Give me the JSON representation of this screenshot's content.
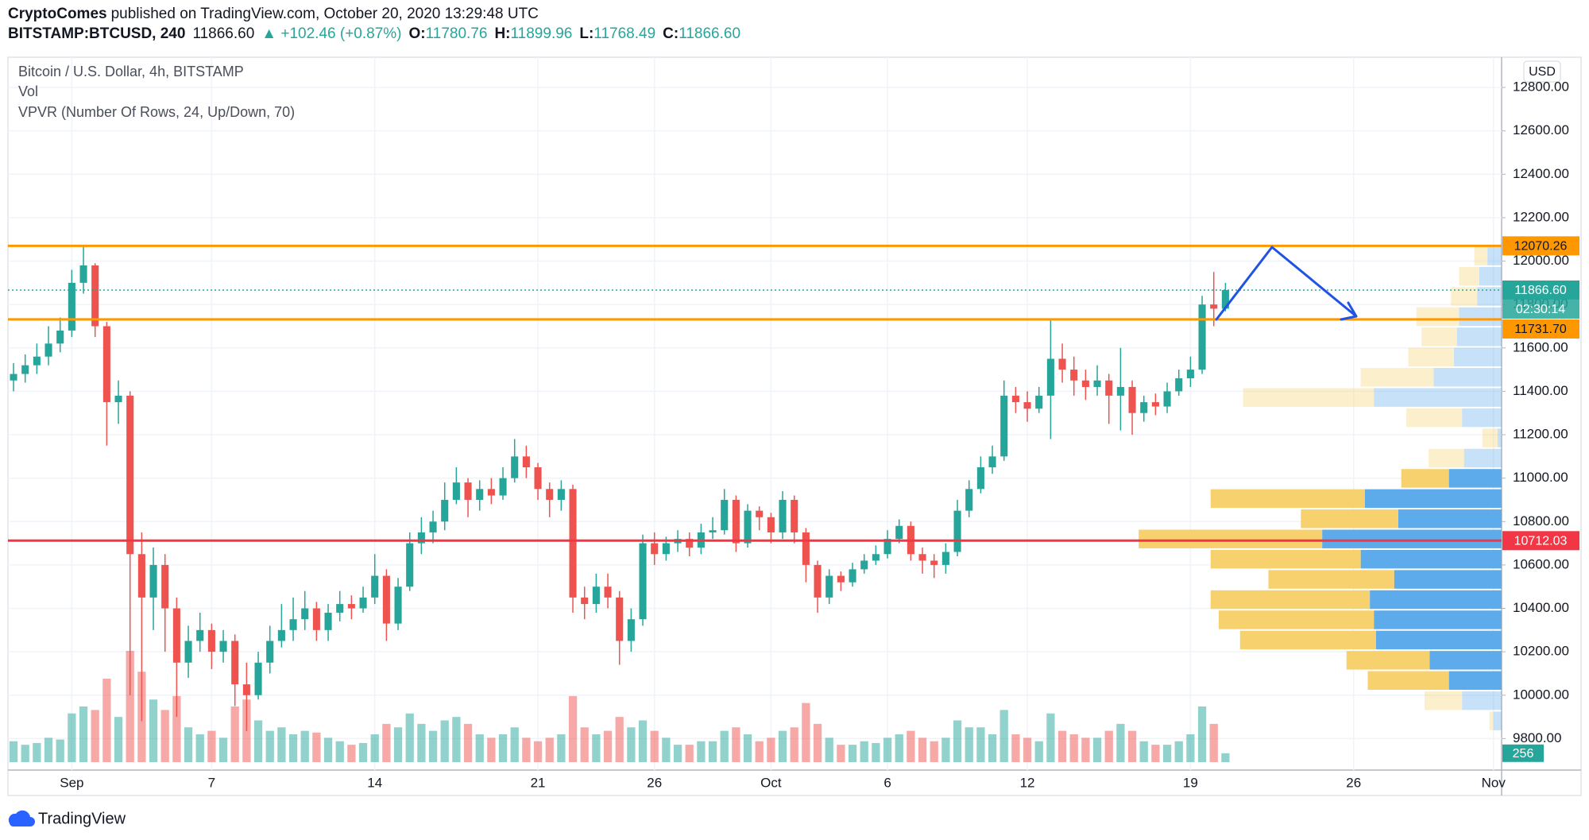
{
  "header": {
    "author": "CryptoComes",
    "published": "published on TradingView.com, October 20, 2020 13:29:48 UTC",
    "symbol": "BITSTAMP:BTCUSD, 240",
    "last": "11866.60",
    "change": "▲ +102.46 (+0.87%)",
    "ohlc": [
      {
        "key": "O:",
        "value": "11780.76"
      },
      {
        "key": "H:",
        "value": "11899.96"
      },
      {
        "key": "L:",
        "value": "11768.49"
      },
      {
        "key": "C:",
        "value": "11866.60"
      }
    ]
  },
  "footer": {
    "brand": "TradingView"
  },
  "chart_data": {
    "type": "candlestick",
    "title": "Bitcoin / U.S. Dollar, 4h, BITSTAMP",
    "indicators": [
      "Vol",
      "VPVR (Number Of Rows, 24, Up/Down, 70)"
    ],
    "currency": "USD",
    "grid": true,
    "up_color": "#26a69a",
    "down_color": "#ef5350",
    "xlim": [
      -2.74,
      61.35
    ],
    "ylim": [
      9655,
      12921
    ],
    "xticks": [
      {
        "value": 0,
        "label": "Sep"
      },
      {
        "value": 6,
        "label": "7"
      },
      {
        "value": 13,
        "label": "14"
      },
      {
        "value": 20,
        "label": "21"
      },
      {
        "value": 25,
        "label": "26"
      },
      {
        "value": 30,
        "label": "Oct"
      },
      {
        "value": 35,
        "label": "6"
      },
      {
        "value": 41,
        "label": "12"
      },
      {
        "value": 48,
        "label": "19"
      },
      {
        "value": 55,
        "label": "26"
      },
      {
        "value": 61,
        "label": "Nov"
      }
    ],
    "yticks": [
      {
        "value": 9800,
        "label": "9800.00"
      },
      {
        "value": 10000,
        "label": "10000.00"
      },
      {
        "value": 10200,
        "label": "10200.00"
      },
      {
        "value": 10400,
        "label": "10400.00"
      },
      {
        "value": 10600,
        "label": "10600.00"
      },
      {
        "value": 10800,
        "label": "10800.00"
      },
      {
        "value": 11000,
        "label": "11000.00"
      },
      {
        "value": 11200,
        "label": "11200.00"
      },
      {
        "value": 11400,
        "label": "11400.00"
      },
      {
        "value": 11600,
        "label": "11600.00"
      },
      {
        "value": 11800,
        "label": "11800.00"
      },
      {
        "value": 12000,
        "label": "12000.00"
      },
      {
        "value": 12200,
        "label": "12200.00"
      },
      {
        "value": 12400,
        "label": "12400.00"
      },
      {
        "value": 12600,
        "label": "12600.00"
      },
      {
        "value": 12800,
        "label": "12800.00"
      }
    ],
    "x": [
      -2.5,
      -2,
      -1.5,
      -1,
      -0.5,
      0,
      0.5,
      1,
      1.5,
      2,
      2.5,
      3,
      3.5,
      4,
      4.5,
      5,
      5.5,
      6,
      6.5,
      7,
      7.5,
      8,
      8.5,
      9,
      9.5,
      10,
      10.5,
      11,
      11.5,
      12,
      12.5,
      13,
      13.5,
      14,
      14.5,
      15,
      15.5,
      16,
      16.5,
      17,
      17.5,
      18,
      18.5,
      19,
      19.5,
      20,
      20.5,
      21,
      21.5,
      22,
      22.5,
      23,
      23.5,
      24,
      24.5,
      25,
      25.5,
      26,
      26.5,
      27,
      27.5,
      28,
      28.5,
      29,
      29.5,
      30,
      30.5,
      31,
      31.5,
      32,
      32.5,
      33,
      33.5,
      34,
      34.5,
      35,
      35.5,
      36,
      36.5,
      37,
      37.5,
      38,
      38.5,
      39,
      39.5,
      40,
      40.5,
      41,
      41.5,
      42,
      42.5,
      43,
      43.5,
      44,
      44.5,
      45,
      45.5,
      46,
      46.5,
      47,
      47.5,
      48,
      48.5,
      49,
      49.5
    ],
    "open": [
      11450,
      11480,
      11520,
      11560,
      11620,
      11680,
      11900,
      11980,
      11700,
      11350,
      11380,
      10650,
      10450,
      10600,
      10400,
      10150,
      10250,
      10300,
      10200,
      10250,
      10050,
      10000,
      10150,
      10250,
      10300,
      10350,
      10400,
      10300,
      10380,
      10420,
      10400,
      10450,
      10550,
      10330,
      10500,
      10700,
      10750,
      10800,
      10900,
      10980,
      10900,
      10950,
      10920,
      11000,
      11100,
      11050,
      10950,
      10900,
      10950,
      10450,
      10420,
      10500,
      10450,
      10250,
      10350,
      10700,
      10650,
      10700,
      10720,
      10680,
      10750,
      10760,
      10900,
      10700,
      10850,
      10820,
      10750,
      10900,
      10750,
      10600,
      10450,
      10550,
      10520,
      10580,
      10620,
      10650,
      10720,
      10780,
      10650,
      10620,
      10600,
      10660,
      10850,
      10950,
      11050,
      11100,
      11380,
      11350,
      11320,
      11380,
      11550,
      11500,
      11450,
      11420,
      11450,
      11380,
      11420,
      11300,
      11350,
      11330,
      11400,
      11460,
      11500,
      11800,
      11780.76
    ],
    "high": [
      11530,
      11570,
      11620,
      11700,
      11740,
      11960,
      12070,
      11990,
      11720,
      11450,
      11400,
      10750,
      10680,
      10650,
      10450,
      10320,
      10380,
      10330,
      10300,
      10280,
      10150,
      10200,
      10320,
      10420,
      10450,
      10480,
      10430,
      10420,
      10480,
      10460,
      10500,
      10650,
      10580,
      10540,
      10750,
      10820,
      10850,
      10980,
      11050,
      11000,
      10990,
      11000,
      11050,
      11180,
      11150,
      11070,
      10980,
      10990,
      10970,
      10500,
      10560,
      10560,
      10480,
      10400,
      10740,
      10750,
      10730,
      10760,
      10750,
      10790,
      10820,
      10950,
      10920,
      10880,
      10870,
      10840,
      10940,
      10920,
      10770,
      10620,
      10580,
      10570,
      10610,
      10650,
      10690,
      10760,
      10810,
      10800,
      10680,
      10650,
      10700,
      10900,
      10990,
      11100,
      11150,
      11450,
      11420,
      11400,
      11420,
      11730,
      11620,
      11560,
      11500,
      11520,
      11480,
      11600,
      11450,
      11380,
      11390,
      11440,
      11500,
      11560,
      11840,
      11950,
      11899.96
    ],
    "low": [
      11400,
      11440,
      11480,
      11520,
      11580,
      11650,
      11850,
      11650,
      11150,
      11250,
      10000,
      9880,
      10300,
      10200,
      9900,
      10080,
      10200,
      10120,
      10150,
      9950,
      9835,
      9980,
      10100,
      10220,
      10250,
      10300,
      10250,
      10250,
      10340,
      10350,
      10380,
      10420,
      10250,
      10300,
      10480,
      10650,
      10700,
      10760,
      10880,
      10820,
      10850,
      10880,
      10900,
      10980,
      11000,
      10900,
      10820,
      10850,
      10380,
      10350,
      10380,
      10400,
      10140,
      10200,
      10320,
      10600,
      10620,
      10660,
      10640,
      10650,
      10720,
      10740,
      10660,
      10680,
      10760,
      10700,
      10720,
      10700,
      10520,
      10380,
      10420,
      10480,
      10500,
      10560,
      10600,
      10630,
      10700,
      10620,
      10560,
      10540,
      10560,
      10640,
      10820,
      10930,
      11020,
      11080,
      11300,
      11260,
      11300,
      11180,
      11440,
      11380,
      11360,
      11380,
      11250,
      11220,
      11200,
      11260,
      11290,
      11300,
      11380,
      11420,
      11480,
      11700,
      11768.49
    ],
    "close": [
      11480,
      11520,
      11560,
      11620,
      11680,
      11900,
      11980,
      11700,
      11350,
      11380,
      10650,
      10450,
      10600,
      10400,
      10150,
      10250,
      10300,
      10200,
      10250,
      10050,
      10000,
      10150,
      10250,
      10300,
      10350,
      10400,
      10300,
      10380,
      10420,
      10400,
      10450,
      10550,
      10330,
      10500,
      10700,
      10750,
      10800,
      10900,
      10980,
      10900,
      10950,
      10920,
      11000,
      11100,
      11050,
      10950,
      10900,
      10950,
      10450,
      10420,
      10500,
      10450,
      10250,
      10350,
      10700,
      10650,
      10700,
      10720,
      10680,
      10750,
      10760,
      10900,
      10700,
      10850,
      10820,
      10750,
      10900,
      10750,
      10600,
      10450,
      10550,
      10520,
      10580,
      10620,
      10650,
      10720,
      10780,
      10650,
      10620,
      10600,
      10660,
      10850,
      10950,
      11050,
      11100,
      11380,
      11350,
      11320,
      11380,
      11550,
      11500,
      11450,
      11420,
      11450,
      11380,
      11420,
      11300,
      11350,
      11330,
      11400,
      11460,
      11500,
      11800,
      11780.76,
      11866.6
    ],
    "volume": [
      600,
      500,
      550,
      700,
      650,
      1400,
      1600,
      1500,
      2400,
      1300,
      3200,
      2600,
      1800,
      1500,
      1900,
      1000,
      800,
      900,
      700,
      1600,
      1800,
      1200,
      900,
      1000,
      800,
      900,
      850,
      700,
      600,
      500,
      550,
      800,
      1100,
      1000,
      1400,
      1100,
      900,
      1200,
      1300,
      1100,
      800,
      700,
      800,
      1000,
      700,
      600,
      700,
      800,
      1900,
      1000,
      800,
      900,
      1300,
      1000,
      1200,
      900,
      700,
      500,
      500,
      600,
      600,
      900,
      1000,
      800,
      600,
      700,
      900,
      1000,
      1700,
      1100,
      700,
      500,
      500,
      600,
      550,
      700,
      800,
      900,
      700,
      600,
      700,
      1200,
      1000,
      1000,
      800,
      1500,
      800,
      700,
      600,
      1400,
      900,
      800,
      700,
      700,
      900,
      1100,
      900,
      600,
      500,
      500,
      600,
      800,
      1600,
      1100,
      256
    ],
    "vpvr": {
      "up_color": "#5eabeb",
      "down_color": "#f7d16e",
      "value_area_percent": 70,
      "up": [
        8,
        39,
        52,
        71,
        124,
        126,
        130,
        106,
        139,
        177,
        102,
        135,
        52,
        37,
        4,
        39,
        126,
        67,
        47,
        44,
        42,
        24,
        22,
        14
      ],
      "down": [
        4,
        37,
        80,
        82,
        134,
        153,
        157,
        124,
        148,
        181,
        96,
        152,
        47,
        35,
        15,
        55,
        129,
        72,
        45,
        35,
        42,
        26,
        20,
        13
      ]
    },
    "levels": [
      {
        "value": 12070.26,
        "label": "12070.26",
        "color": "#ff9800",
        "label_color": "#131722"
      },
      {
        "value": 11731.7,
        "label": "11731.70",
        "color": "#ff9800",
        "label_color": "#131722"
      },
      {
        "value": 10712.03,
        "label": "10712.03",
        "color": "#f23645",
        "label_color": "#ffffff"
      }
    ],
    "current": {
      "value": 11866.6,
      "label": "11866.60",
      "countdown": "02:30:14",
      "color": "#26a69a",
      "label_color": "#ffffff"
    }
  }
}
